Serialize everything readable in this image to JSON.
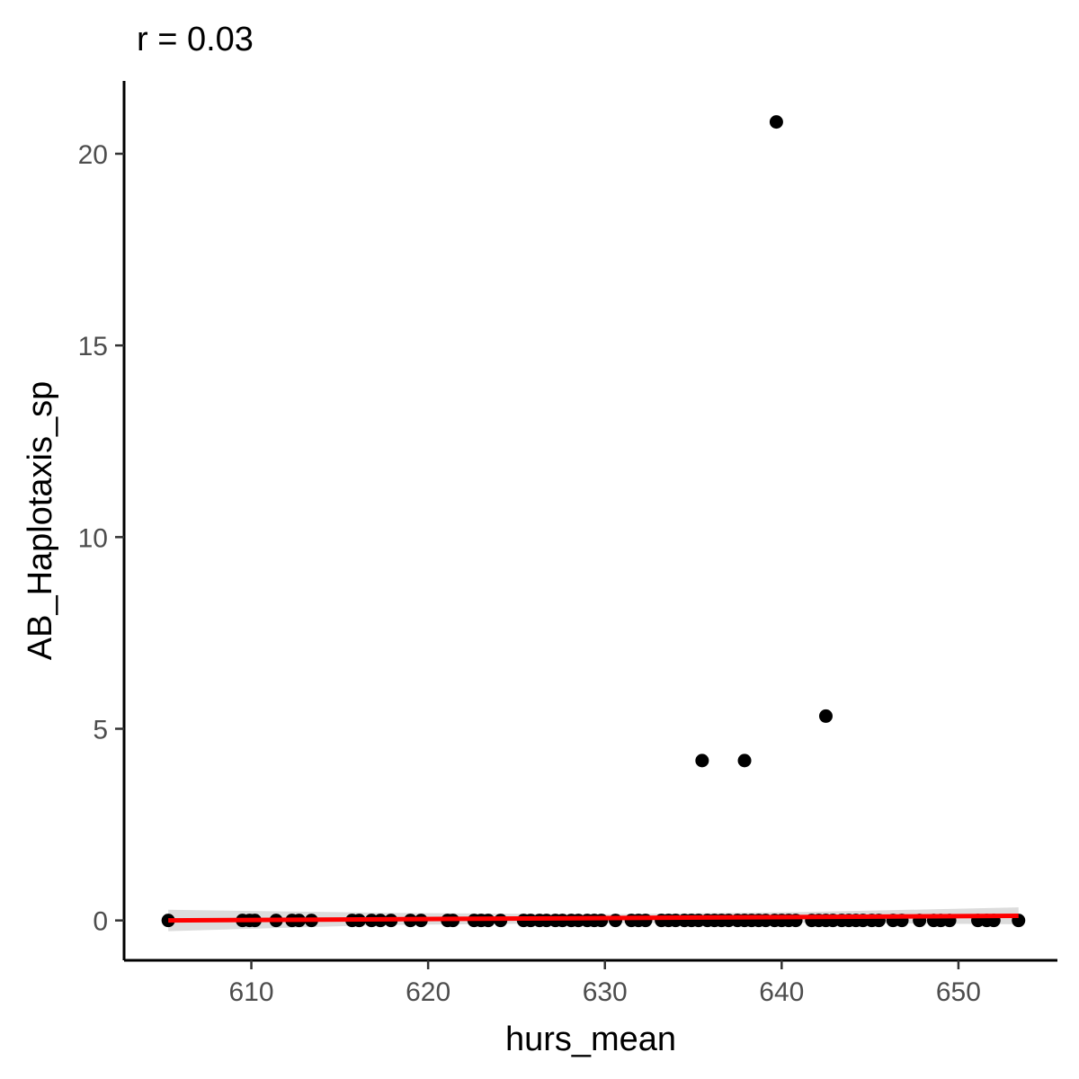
{
  "chart_data": {
    "type": "scatter",
    "title": "r = 0.03",
    "xlabel": "hurs_mean",
    "ylabel": "AB_Haplotaxis_sp",
    "xlim": [
      602.8,
      655.6
    ],
    "ylim": [
      -1.04,
      21.9
    ],
    "xticks": [
      610,
      620,
      630,
      640,
      650
    ],
    "yticks": [
      0,
      5,
      10,
      15,
      20
    ],
    "grid": false,
    "legend": "none",
    "colors": {
      "points": "#000000",
      "fit_line": "#ff0000",
      "confidence_band": "#d3d3d3"
    },
    "points": [
      [
        605.3,
        0
      ],
      [
        609.5,
        0
      ],
      [
        609.9,
        0
      ],
      [
        610.2,
        0
      ],
      [
        611.4,
        0
      ],
      [
        612.3,
        0
      ],
      [
        612.7,
        0
      ],
      [
        613.4,
        0
      ],
      [
        615.7,
        0
      ],
      [
        616.1,
        0
      ],
      [
        616.8,
        0
      ],
      [
        617.3,
        0
      ],
      [
        617.9,
        0
      ],
      [
        619.0,
        0
      ],
      [
        619.6,
        0
      ],
      [
        621.1,
        0
      ],
      [
        621.4,
        0
      ],
      [
        622.6,
        0
      ],
      [
        623.0,
        0
      ],
      [
        623.4,
        0
      ],
      [
        624.1,
        0
      ],
      [
        625.4,
        0
      ],
      [
        625.8,
        0
      ],
      [
        626.3,
        0
      ],
      [
        626.7,
        0
      ],
      [
        627.2,
        0
      ],
      [
        627.6,
        0
      ],
      [
        628.1,
        0
      ],
      [
        628.5,
        0
      ],
      [
        629.0,
        0
      ],
      [
        629.4,
        0
      ],
      [
        629.8,
        0
      ],
      [
        630.6,
        0
      ],
      [
        631.5,
        0
      ],
      [
        631.9,
        0
      ],
      [
        632.3,
        0
      ],
      [
        633.2,
        0
      ],
      [
        633.6,
        0
      ],
      [
        634.0,
        0
      ],
      [
        634.5,
        0
      ],
      [
        634.9,
        0
      ],
      [
        635.3,
        0
      ],
      [
        635.8,
        0
      ],
      [
        636.2,
        0
      ],
      [
        636.6,
        0
      ],
      [
        637.0,
        0
      ],
      [
        637.5,
        0
      ],
      [
        637.9,
        0
      ],
      [
        638.3,
        0
      ],
      [
        638.7,
        0
      ],
      [
        639.1,
        0
      ],
      [
        639.6,
        0
      ],
      [
        640.0,
        0
      ],
      [
        640.4,
        0
      ],
      [
        640.8,
        0
      ],
      [
        641.7,
        0
      ],
      [
        642.1,
        0
      ],
      [
        642.5,
        0
      ],
      [
        642.9,
        0
      ],
      [
        643.4,
        0
      ],
      [
        643.8,
        0
      ],
      [
        644.2,
        0
      ],
      [
        644.6,
        0
      ],
      [
        645.1,
        0
      ],
      [
        645.5,
        0
      ],
      [
        646.3,
        0
      ],
      [
        646.8,
        0
      ],
      [
        647.8,
        0
      ],
      [
        648.6,
        0
      ],
      [
        649.0,
        0
      ],
      [
        649.5,
        0
      ],
      [
        651.1,
        0
      ],
      [
        651.6,
        0
      ],
      [
        652.0,
        0
      ],
      [
        653.4,
        0
      ],
      [
        635.5,
        4.17
      ],
      [
        637.9,
        4.17
      ],
      [
        642.5,
        5.33
      ],
      [
        639.7,
        20.83
      ]
    ],
    "fit_line": {
      "x": [
        605.3,
        653.4
      ],
      "y": [
        0.0,
        0.12
      ]
    },
    "confidence_band": {
      "x": [
        605.3,
        617.3,
        629.4,
        641.4,
        653.4
      ],
      "lower": [
        -0.28,
        -0.12,
        -0.07,
        -0.06,
        -0.1
      ],
      "upper": [
        0.28,
        0.2,
        0.16,
        0.22,
        0.34
      ]
    }
  }
}
